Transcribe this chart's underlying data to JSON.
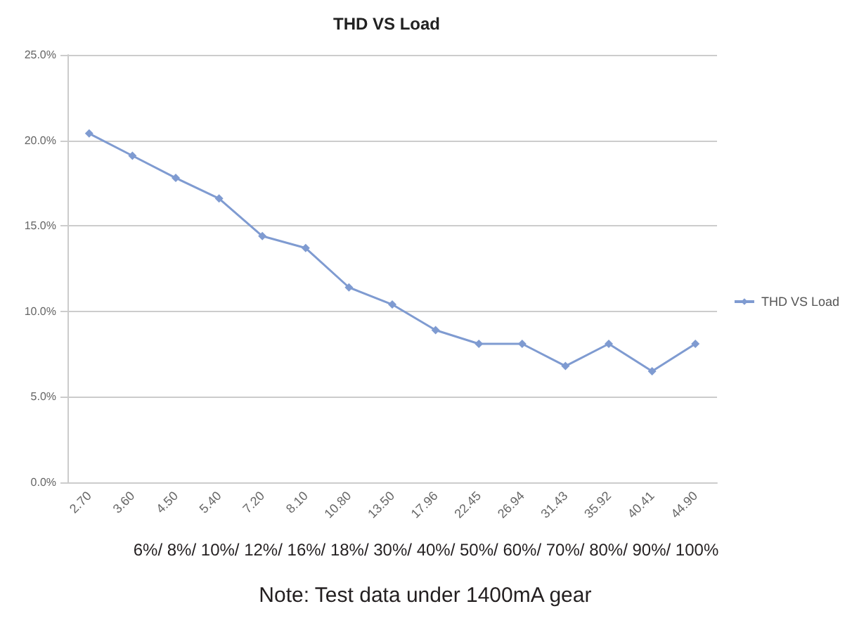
{
  "chart_data": {
    "type": "line",
    "title": "THD VS Load",
    "categories": [
      "2.70",
      "3.60",
      "4.50",
      "5.40",
      "7.20",
      "8.10",
      "10.80",
      "13.50",
      "17.96",
      "22.45",
      "26.94",
      "31.43",
      "35.92",
      "40.41",
      "44.90"
    ],
    "series": [
      {
        "name": "THD VS Load",
        "color": "#7f9bd1",
        "values": [
          20.4,
          19.1,
          17.8,
          16.6,
          14.4,
          13.7,
          11.4,
          10.4,
          8.9,
          8.1,
          8.1,
          6.8,
          8.1,
          6.5,
          8.1
        ]
      }
    ],
    "ylim": [
      0,
      25
    ],
    "yticks": [
      {
        "value": 0,
        "label": "0.0%"
      },
      {
        "value": 5,
        "label": "5.0%"
      },
      {
        "value": 10,
        "label": "10.0%"
      },
      {
        "value": 15,
        "label": "15.0%"
      },
      {
        "value": 20,
        "label": "20.0%"
      },
      {
        "value": 25,
        "label": "25.0%"
      }
    ],
    "grid": "y",
    "legend": "right",
    "marker": "diamond",
    "line_style": "solid",
    "annotations": [
      "6%/ 8%/ 10%/ 12%/ 16%/ 18%/ 30%/ 40%/ 50%/ 60%/ 70%/ 80%/ 90%/ 100%",
      "Note: Test data under 1400mA gear"
    ]
  }
}
